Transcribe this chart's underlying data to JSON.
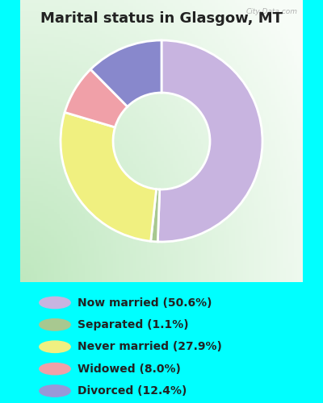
{
  "title": "Marital status in Glasgow, MT",
  "slices": [
    50.6,
    1.1,
    27.9,
    8.0,
    12.4
  ],
  "labels": [
    "Now married (50.6%)",
    "Separated (1.1%)",
    "Never married (27.9%)",
    "Widowed (8.0%)",
    "Divorced (12.4%)"
  ],
  "colors": [
    "#c8b4e0",
    "#a8c890",
    "#f0f080",
    "#f0a0a8",
    "#8888cc"
  ],
  "legend_colors": [
    "#c8b4e0",
    "#a8c890",
    "#f0f080",
    "#f0a0a8",
    "#9898d8"
  ],
  "background_top": "#00ffff",
  "background_legend": "#00ffff",
  "title_color": "#222222",
  "legend_text_color": "#222222",
  "watermark": "City-Data.com",
  "start_angle": 90,
  "chart_bg_left": "#c8e8c8",
  "chart_bg_right": "#f0f8f0",
  "donut_width": 0.52
}
